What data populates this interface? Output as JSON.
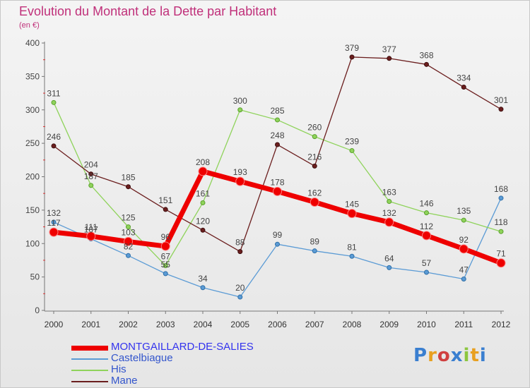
{
  "title": "Evolution du Montant de la Dette par Habitant",
  "subtitle": "(en €)",
  "logo": "Proxiti",
  "chart_data": {
    "type": "line",
    "title": "Evolution du Montant de la Dette par Habitant",
    "subtitle": "(en €)",
    "categories": [
      "2000",
      "2001",
      "2002",
      "2003",
      "2004",
      "2005",
      "2006",
      "2007",
      "2008",
      "2009",
      "2010",
      "2011",
      "2012"
    ],
    "ylim": [
      0,
      400
    ],
    "yticks": [
      0,
      50,
      100,
      150,
      200,
      250,
      300,
      350,
      400
    ],
    "grid": false,
    "legend_position": "bottom-left",
    "series": [
      {
        "name": "MONTGAILLARD-DE-SALIES",
        "color": "#ee0000",
        "values": [
          117,
          111,
          103,
          96,
          208,
          193,
          178,
          162,
          145,
          132,
          112,
          92,
          71
        ]
      },
      {
        "name": "Castelbiague",
        "color": "#5b9bd5",
        "values": [
          132,
          107,
          82,
          55,
          34,
          20,
          99,
          89,
          81,
          64,
          57,
          47,
          168
        ]
      },
      {
        "name": "His",
        "color": "#8fd35b",
        "values": [
          311,
          187,
          125,
          67,
          161,
          300,
          285,
          260,
          239,
          163,
          146,
          135,
          118
        ]
      },
      {
        "name": "Mane",
        "color": "#6b1e1e",
        "values": [
          246,
          204,
          185,
          151,
          120,
          88,
          248,
          216,
          379,
          377,
          368,
          334,
          301
        ]
      }
    ]
  }
}
